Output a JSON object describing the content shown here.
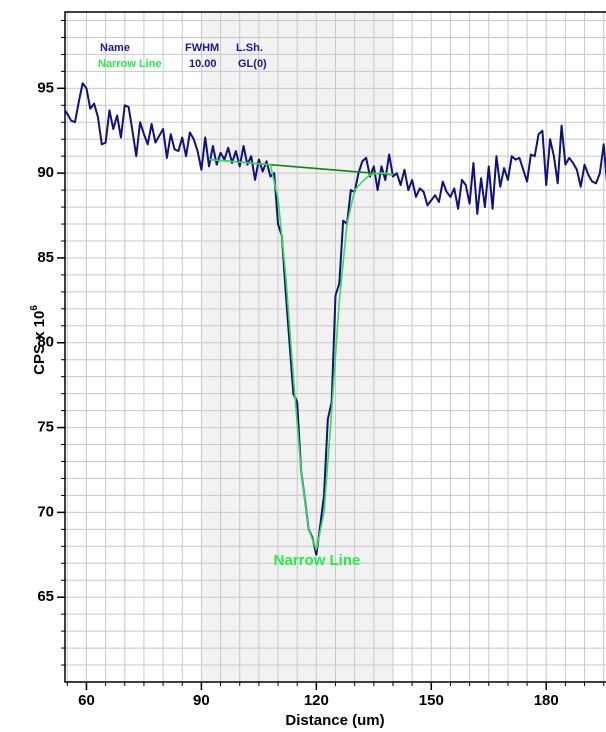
{
  "chart_data": {
    "type": "line",
    "xlabel": "Distance (um)",
    "ylabel": "CPS x 10",
    "ylabel_exponent": "6",
    "xlim": [
      54.4,
      195.6
    ],
    "ylim": [
      60,
      99.5
    ],
    "xticks": [
      60,
      90,
      120,
      150,
      180
    ],
    "yticks": [
      65,
      70,
      75,
      80,
      85,
      90,
      95
    ],
    "x_grid": [
      55,
      60,
      65,
      70,
      75,
      80,
      85,
      90,
      95,
      100,
      105,
      110,
      115,
      120,
      125,
      130,
      135,
      140,
      145,
      150,
      155,
      160,
      165,
      170,
      175,
      180,
      185,
      190,
      195
    ],
    "y_grid": [
      61,
      62,
      63,
      64,
      65,
      66,
      67,
      68,
      69,
      70,
      71,
      72,
      73,
      74,
      75,
      76,
      77,
      78,
      79,
      80,
      81,
      82,
      83,
      84,
      85,
      86,
      87,
      88,
      89,
      90,
      91,
      92,
      93,
      94,
      95,
      96,
      97,
      98,
      99
    ],
    "grid": true,
    "grid_color": "#c8c8c8",
    "region": [
      90,
      140
    ],
    "region_color": "#f2f2f2",
    "legend_table": {
      "header": [
        "Name",
        "FWHM",
        "L.Sh."
      ],
      "rows": [
        [
          "Narrow Line",
          "10.00",
          "GL(0)"
        ]
      ],
      "header_color": "#1a1a8c",
      "name_color": "#22ee44",
      "cell_color": "#1a1a8c"
    },
    "annotations": [
      {
        "text": "Narrow Line",
        "color": "#22ee44"
      }
    ],
    "series": [
      {
        "color": "#101080",
        "x": [
          54,
          55,
          56,
          57,
          58,
          59,
          60,
          61,
          62,
          63,
          64,
          65,
          66,
          67,
          68,
          69,
          70,
          71,
          72,
          73,
          74,
          75,
          76,
          77,
          78,
          79,
          80,
          81,
          82,
          83,
          84,
          85,
          86,
          87,
          88,
          89,
          90,
          91,
          92,
          93,
          94,
          95,
          96,
          97,
          98,
          99,
          100,
          101,
          102,
          103,
          104,
          105,
          106,
          107,
          108,
          109,
          110,
          111,
          112,
          113,
          114,
          115,
          116,
          117,
          118,
          119,
          120,
          121,
          122,
          123,
          124,
          125,
          126,
          127,
          128,
          129,
          130,
          131,
          132,
          133,
          134,
          135,
          136,
          137,
          138,
          139,
          140,
          141,
          142,
          143,
          144,
          145,
          146,
          147,
          148,
          149,
          150,
          151,
          152,
          153,
          154,
          155,
          156,
          157,
          158,
          159,
          160,
          161,
          162,
          163,
          164,
          165,
          166,
          167,
          168,
          169,
          170,
          171,
          172,
          173,
          174,
          175,
          176,
          177,
          178,
          179,
          180,
          181,
          182,
          183,
          184,
          185,
          186,
          187,
          188,
          189,
          190,
          191,
          192,
          193,
          194,
          195,
          196
        ],
        "values": [
          93.8,
          93.5,
          93.1,
          93.0,
          94.2,
          95.3,
          95.0,
          93.8,
          94.1,
          93.3,
          91.7,
          91.8,
          93.7,
          92.6,
          93.4,
          92.1,
          94.0,
          93.9,
          92.5,
          91.0,
          93.0,
          92.3,
          91.7,
          92.9,
          91.8,
          92.2,
          92.6,
          90.9,
          92.3,
          91.4,
          91.3,
          92.1,
          91.0,
          92.4,
          92.0,
          91.3,
          90.2,
          92.1,
          90.4,
          91.6,
          90.5,
          91.2,
          90.8,
          91.5,
          90.6,
          91.3,
          90.4,
          91.6,
          90.5,
          91.0,
          89.6,
          90.8,
          90.1,
          90.7,
          89.8,
          90.0,
          87.0,
          86.3,
          83.0,
          80.0,
          77.0,
          76.5,
          72.5,
          70.8,
          69.0,
          68.5,
          67.5,
          69.2,
          71.0,
          75.5,
          76.5,
          82.8,
          83.5,
          87.2,
          87.0,
          89.0,
          88.9,
          90.0,
          90.7,
          90.9,
          89.8,
          90.4,
          89.0,
          90.4,
          89.6,
          91.1,
          89.8,
          90.0,
          89.3,
          90.2,
          89.0,
          89.6,
          88.6,
          89.1,
          88.9,
          88.1,
          88.4,
          88.7,
          88.3,
          89.5,
          88.9,
          88.6,
          89.1,
          87.9,
          89.6,
          89.3,
          88.2,
          90.6,
          87.6,
          89.7,
          88.0,
          90.4,
          87.9,
          91.0,
          89.2,
          90.3,
          89.6,
          91.0,
          90.8,
          90.9,
          90.2,
          89.5,
          91.1,
          91.0,
          92.3,
          92.5,
          89.3,
          92.0,
          91.0,
          89.4,
          92.8,
          90.5,
          90.9,
          90.6,
          90.2,
          89.2,
          90.5,
          89.9,
          89.5,
          89.4,
          90.0,
          91.7,
          89.1
        ]
      },
      {
        "name": "Narrow Line",
        "color": "#33dd55",
        "x": [
          92,
          100,
          108,
          110,
          112,
          114,
          116,
          118,
          120,
          122,
          124,
          126,
          128,
          130,
          132,
          134,
          136,
          138,
          140
        ],
        "values": [
          90.8,
          90.65,
          90.5,
          88.5,
          84.0,
          78.0,
          72.5,
          69.0,
          67.8,
          70.0,
          76.0,
          82.5,
          87.0,
          89.0,
          89.5,
          89.9,
          90.0,
          90.0,
          89.9
        ]
      },
      {
        "color": "#118811",
        "x": [
          92,
          140
        ],
        "values": [
          90.8,
          89.9
        ]
      }
    ]
  }
}
